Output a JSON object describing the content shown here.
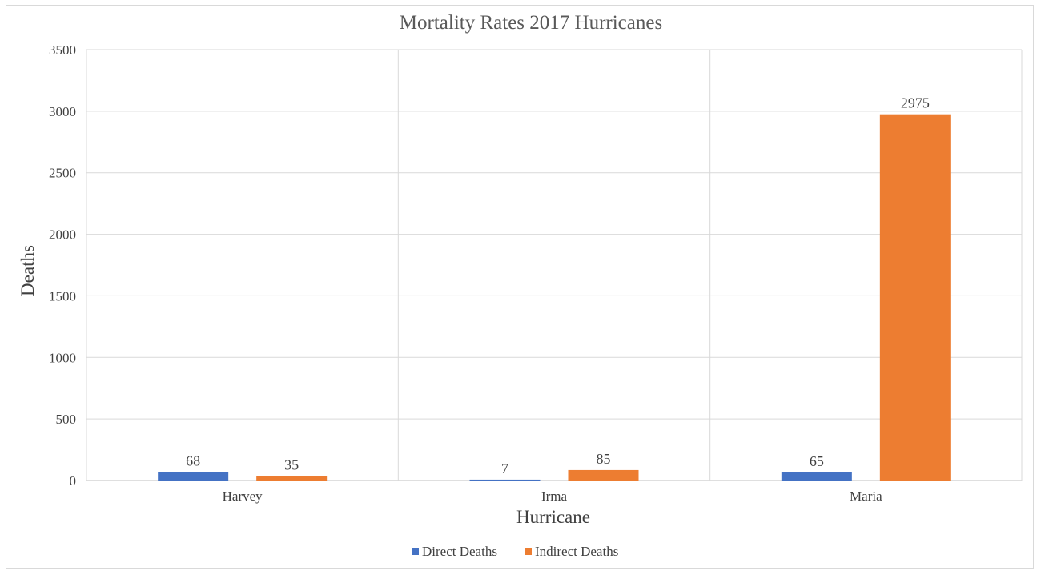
{
  "chart_data": {
    "type": "bar",
    "title": "Mortality Rates 2017 Hurricanes",
    "xlabel": "Hurricane",
    "ylabel": "Deaths",
    "categories": [
      "Harvey",
      "Irma",
      "Maria"
    ],
    "series": [
      {
        "name": "Direct Deaths",
        "values": [
          68,
          7,
          65
        ],
        "color": "#4472c4"
      },
      {
        "name": "Indirect Deaths",
        "values": [
          35,
          85,
          2975
        ],
        "color": "#ed7d31"
      }
    ],
    "ylim": [
      0,
      3500
    ],
    "yticks": [
      0,
      500,
      1000,
      1500,
      2000,
      2500,
      3000,
      3500
    ],
    "grid": true,
    "legend_position": "bottom",
    "data_labels": true
  }
}
